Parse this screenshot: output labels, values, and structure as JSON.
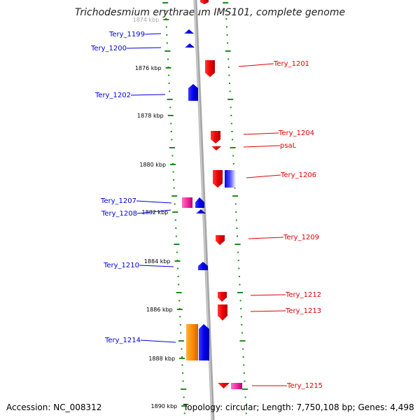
{
  "title": "Trichodesmium erythraeum IMS101, complete genome",
  "footer": {
    "accession": "Accession: NC_008312",
    "topology": "Topology: circular; Length: 7,750,108 bp; Genes: 4,498"
  },
  "colors": {
    "left_strand": "#0000dd",
    "right_strand": "#e00000",
    "backbone": "#888888",
    "ticks": "#1e8c1e"
  },
  "scale_labels": [
    "1874 kbp",
    "1876 kbp",
    "1878 kbp",
    "1880 kbp",
    "1882 kbp",
    "1884 kbp",
    "1886 kbp",
    "1888 kbp",
    "1890 kbp"
  ],
  "genes_left": [
    "Tery_1199",
    "Tery_1200",
    "Tery_1202",
    "Tery_1207",
    "Tery_1208",
    "Tery_1210",
    "Tery_1214"
  ],
  "genes_right": [
    "Tery_1201",
    "Tery_1204",
    "psaL",
    "Tery_1206",
    "Tery_1209",
    "Tery_1212",
    "Tery_1213",
    "Tery_1215"
  ]
}
